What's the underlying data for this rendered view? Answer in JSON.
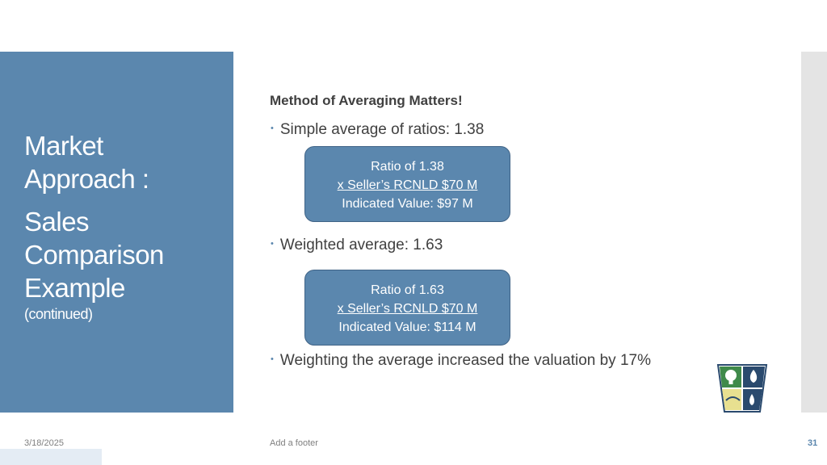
{
  "slide": {
    "title_line1": "Market",
    "title_line2": "Approach :",
    "subtitle_line1": "Sales",
    "subtitle_line2": "Comparison",
    "subtitle_line3": "Example",
    "subtitle_line4": "(continued)"
  },
  "content": {
    "heading": "Method of Averaging Matters!",
    "bullet1": "Simple average of ratios: 1.38",
    "callout1": {
      "line1": "Ratio of 1.38",
      "line2": "x Seller’s RCNLD $70 M",
      "line3": "Indicated Value: $97 M"
    },
    "bullet2": "Weighted average: 1.63",
    "callout2": {
      "line1": "Ratio of 1.63",
      "line2": "x Seller’s RCNLD $70 M",
      "line3": "Indicated Value: $114 M"
    },
    "bullet3": "Weighting the average increased the valuation by 17%"
  },
  "footer": {
    "date": "3/18/2025",
    "text": "Add a footer",
    "page_number": "31"
  },
  "colors": {
    "accent": "#5b87ae",
    "logo_navy": "#2a4a6e",
    "logo_green": "#3f8a4a",
    "logo_yellow": "#e8e090"
  },
  "icons": {
    "logo": "utility-shield-logo"
  }
}
